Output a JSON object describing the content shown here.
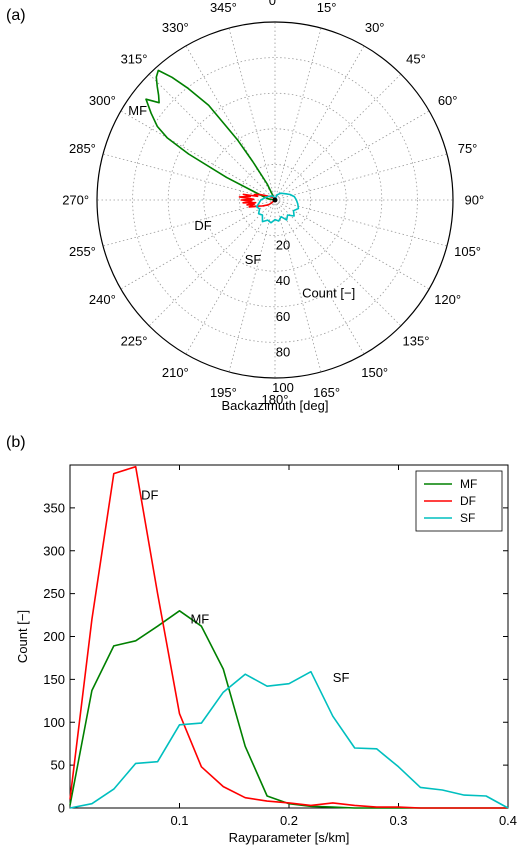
{
  "figure": {
    "panel_a_label": "(a)",
    "panel_b_label": "(b)"
  },
  "chart_data": [
    {
      "type": "polar-line",
      "panel": "(a)",
      "xlabel": "Backazimuth [deg]",
      "radial_label": "Count [−]",
      "radial_ticks": [
        "20",
        "40",
        "60",
        "80",
        "100"
      ],
      "radial_tick_values": [
        20,
        40,
        60,
        80,
        100
      ],
      "rlim": [
        0,
        100
      ],
      "angle_ticks": [
        "0°",
        "15°",
        "30°",
        "45°",
        "60°",
        "75°",
        "90°",
        "105°",
        "120°",
        "135°",
        "150°",
        "165°",
        "180°",
        "195°",
        "210°",
        "225°",
        "240°",
        "255°",
        "270°",
        "285°",
        "300°",
        "315°",
        "330°",
        "345°"
      ],
      "angle_tick_values": [
        0,
        15,
        30,
        45,
        60,
        75,
        90,
        105,
        120,
        135,
        150,
        165,
        180,
        195,
        210,
        225,
        240,
        255,
        270,
        285,
        300,
        315,
        330,
        345
      ],
      "direction": "clockwise-from-north",
      "grid": true,
      "series": [
        {
          "name": "MF",
          "color": "#008000",
          "theta": [
            0,
            280,
            290,
            295,
            298,
            300,
            302,
            305,
            308,
            310,
            312,
            314,
            316,
            318,
            320,
            322,
            325,
            328,
            330,
            334,
            0
          ],
          "r": [
            0,
            4,
            10,
            30,
            55,
            70,
            78,
            85,
            92,
            85,
            88,
            92,
            96,
            98,
            90,
            80,
            65,
            40,
            25,
            10,
            0
          ]
        },
        {
          "name": "DF",
          "color": "#ff0000",
          "theta": [
            0,
            230,
            235,
            240,
            245,
            250,
            252,
            255,
            258,
            260,
            262,
            265,
            268,
            270,
            272,
            275,
            278,
            280,
            282,
            285,
            290,
            295,
            300,
            310,
            320,
            330,
            0
          ],
          "r": [
            0,
            3,
            5,
            6,
            8,
            10,
            12,
            15,
            12,
            16,
            11,
            18,
            13,
            19,
            12,
            20,
            14,
            18,
            10,
            12,
            9,
            6,
            4,
            3,
            2,
            1,
            0
          ]
        },
        {
          "name": "SF",
          "color": "#00bfbf",
          "theta": [
            0,
            20,
            40,
            60,
            70,
            80,
            90,
            100,
            110,
            120,
            130,
            140,
            150,
            160,
            170,
            180,
            190,
            200,
            210,
            220,
            230,
            240,
            250,
            260,
            270,
            280,
            290,
            300,
            320,
            340,
            0
          ],
          "r": [
            0,
            3,
            5,
            7,
            9,
            11,
            12,
            13,
            14,
            12,
            14,
            11,
            13,
            10,
            12,
            11,
            13,
            12,
            14,
            11,
            12,
            10,
            11,
            9,
            8,
            6,
            5,
            4,
            3,
            2,
            0
          ]
        }
      ],
      "annotations": [
        {
          "text": "MF",
          "theta": 303,
          "r": 92
        },
        {
          "text": "DF",
          "theta": 250,
          "r": 43
        },
        {
          "text": "SF",
          "theta": 200,
          "r": 36
        }
      ]
    },
    {
      "type": "line",
      "panel": "(b)",
      "xlabel": "Rayparameter [s/km]",
      "ylabel": "Count [−]",
      "xlim": [
        0,
        0.4
      ],
      "ylim": [
        0,
        400
      ],
      "xticks": [
        0.1,
        0.2,
        0.3,
        0.4
      ],
      "xtick_labels": [
        "0.1",
        "0.2",
        "0.3",
        "0.4"
      ],
      "yticks": [
        0,
        50,
        100,
        150,
        200,
        250,
        300,
        350
      ],
      "ytick_labels": [
        "0",
        "50",
        "100",
        "150",
        "200",
        "250",
        "300",
        "350"
      ],
      "legend": {
        "placement": "top-right",
        "entries": [
          "MF",
          "DF",
          "SF"
        ]
      },
      "grid": false,
      "x": [
        0,
        0.02,
        0.04,
        0.06,
        0.08,
        0.1,
        0.12,
        0.14,
        0.16,
        0.18,
        0.2,
        0.22,
        0.24,
        0.26,
        0.28,
        0.3,
        0.32,
        0.34,
        0.36,
        0.38,
        0.4
      ],
      "series": [
        {
          "name": "MF",
          "color": "#008000",
          "values": [
            3,
            137,
            189,
            195,
            212,
            230,
            212,
            162,
            72,
            14,
            5,
            2,
            1,
            0,
            0,
            0,
            0,
            0,
            0,
            0,
            0
          ]
        },
        {
          "name": "DF",
          "color": "#ff0000",
          "values": [
            10,
            220,
            390,
            398,
            250,
            110,
            48,
            25,
            12,
            8,
            6,
            3,
            6,
            3,
            1,
            1,
            0,
            0,
            0,
            0,
            0
          ]
        },
        {
          "name": "SF",
          "color": "#00bfbf",
          "values": [
            0,
            5,
            22,
            52,
            54,
            97,
            99,
            135,
            156,
            142,
            145,
            159,
            107,
            70,
            69,
            48,
            24,
            21,
            15,
            14,
            0
          ]
        }
      ],
      "annotations": [
        {
          "text": "DF",
          "x": 0.065,
          "y": 360
        },
        {
          "text": "MF",
          "x": 0.11,
          "y": 215
        },
        {
          "text": "SF",
          "x": 0.24,
          "y": 147
        }
      ]
    }
  ]
}
